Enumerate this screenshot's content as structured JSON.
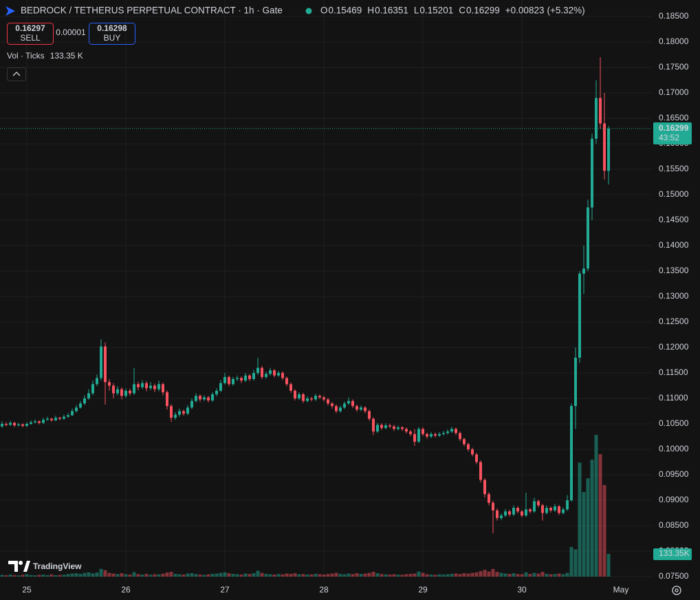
{
  "chart_data": {
    "type": "candlestick",
    "title": "BEDROCK / TETHERUS PERPETUAL CONTRACT · 1h · Gate",
    "legend": {
      "labels": [
        "O",
        "H",
        "L",
        "C"
      ],
      "values": [
        0.15469,
        0.16351,
        0.15201,
        0.16299
      ],
      "change": {
        "value": 0.00823,
        "label": "+0.00823"
      },
      "change_pct": {
        "value": 5.32,
        "label": "(+5.32%)"
      }
    },
    "trade": {
      "sell": {
        "price": 0.16297,
        "label": "SELL"
      },
      "spread": 1e-05,
      "buy": {
        "price": 0.16298,
        "label": "BUY"
      }
    },
    "volume_indicator": {
      "title": "Vol · Ticks",
      "value": {
        "value": 133.35,
        "label": "133.35 K"
      }
    },
    "categories": [
      null,
      null,
      null,
      null,
      null,
      null,
      "25",
      null,
      null,
      null,
      null,
      null,
      null,
      null,
      null,
      null,
      null,
      null,
      null,
      null,
      null,
      null,
      null,
      null,
      null,
      null,
      null,
      null,
      null,
      null,
      "26",
      null,
      null,
      null,
      null,
      null,
      null,
      null,
      null,
      null,
      null,
      null,
      null,
      null,
      null,
      null,
      null,
      null,
      null,
      null,
      null,
      null,
      null,
      null,
      "27",
      null,
      null,
      null,
      null,
      null,
      null,
      null,
      null,
      null,
      null,
      null,
      null,
      null,
      null,
      null,
      null,
      null,
      null,
      null,
      null,
      null,
      null,
      null,
      "28",
      null,
      null,
      null,
      null,
      null,
      null,
      null,
      null,
      null,
      null,
      null,
      null,
      null,
      null,
      null,
      null,
      null,
      null,
      null,
      null,
      null,
      null,
      null,
      "29",
      null,
      null,
      null,
      null,
      null,
      null,
      null,
      null,
      null,
      null,
      null,
      null,
      null,
      null,
      null,
      null,
      null,
      null,
      null,
      null,
      null,
      null,
      null,
      "30",
      null,
      null,
      null,
      null,
      null,
      null,
      null,
      null,
      null,
      null,
      null,
      null,
      null,
      null,
      null,
      null,
      null,
      null,
      null,
      null,
      null
    ],
    "x_end_label": "May",
    "candles": [
      [
        0.1045,
        0.1055,
        0.1042,
        0.105
      ],
      [
        0.105,
        0.1053,
        0.1045,
        0.1048
      ],
      [
        0.1048,
        0.1056,
        0.1046,
        0.1052
      ],
      [
        0.1052,
        0.1054,
        0.1044,
        0.1047
      ],
      [
        0.1047,
        0.1052,
        0.1045,
        0.1049
      ],
      [
        0.1049,
        0.1051,
        0.1043,
        0.1046
      ],
      [
        0.1046,
        0.1053,
        0.1044,
        0.105
      ],
      [
        0.105,
        0.1057,
        0.1048,
        0.1053
      ],
      [
        0.1053,
        0.1059,
        0.1051,
        0.1055
      ],
      [
        0.1055,
        0.1057,
        0.1049,
        0.1052
      ],
      [
        0.1052,
        0.1062,
        0.105,
        0.1058
      ],
      [
        0.1058,
        0.1064,
        0.1056,
        0.106
      ],
      [
        0.106,
        0.1062,
        0.1054,
        0.1057
      ],
      [
        0.1057,
        0.1066,
        0.1055,
        0.1062
      ],
      [
        0.1062,
        0.1064,
        0.1057,
        0.106
      ],
      [
        0.106,
        0.1068,
        0.1058,
        0.1064
      ],
      [
        0.1064,
        0.1071,
        0.1062,
        0.1067
      ],
      [
        0.1067,
        0.108,
        0.1065,
        0.1075
      ],
      [
        0.1075,
        0.1087,
        0.1072,
        0.1082
      ],
      [
        0.1082,
        0.1095,
        0.108,
        0.109
      ],
      [
        0.109,
        0.1106,
        0.1087,
        0.11
      ],
      [
        0.11,
        0.1118,
        0.1097,
        0.111
      ],
      [
        0.111,
        0.1135,
        0.1106,
        0.1128
      ],
      [
        0.1128,
        0.1147,
        0.1124,
        0.114
      ],
      [
        0.114,
        0.1216,
        0.1135,
        0.1202
      ],
      [
        0.1202,
        0.121,
        0.1088,
        0.1132
      ],
      [
        0.1132,
        0.1138,
        0.1115,
        0.1125
      ],
      [
        0.1125,
        0.113,
        0.11,
        0.111
      ],
      [
        0.111,
        0.1124,
        0.1106,
        0.1118
      ],
      [
        0.1118,
        0.1122,
        0.1098,
        0.1105
      ],
      [
        0.1105,
        0.112,
        0.1101,
        0.1115
      ],
      [
        0.1115,
        0.1119,
        0.1105,
        0.111
      ],
      [
        0.111,
        0.116,
        0.1107,
        0.1128
      ],
      [
        0.1128,
        0.1133,
        0.1116,
        0.1122
      ],
      [
        0.1122,
        0.1136,
        0.1118,
        0.113
      ],
      [
        0.113,
        0.1134,
        0.1114,
        0.112
      ],
      [
        0.112,
        0.1132,
        0.1116,
        0.1125
      ],
      [
        0.1125,
        0.1129,
        0.1112,
        0.1118
      ],
      [
        0.1118,
        0.1135,
        0.1114,
        0.1128
      ],
      [
        0.1128,
        0.1131,
        0.1106,
        0.1112
      ],
      [
        0.1112,
        0.1116,
        0.1078,
        0.1085
      ],
      [
        0.1085,
        0.1089,
        0.1054,
        0.1062
      ],
      [
        0.1062,
        0.1073,
        0.1058,
        0.1068
      ],
      [
        0.1068,
        0.108,
        0.1064,
        0.1075
      ],
      [
        0.1075,
        0.1078,
        0.1066,
        0.107
      ],
      [
        0.107,
        0.1087,
        0.1067,
        0.1082
      ],
      [
        0.1082,
        0.11,
        0.1079,
        0.1095
      ],
      [
        0.1095,
        0.111,
        0.1092,
        0.1105
      ],
      [
        0.1105,
        0.1108,
        0.1093,
        0.1098
      ],
      [
        0.1098,
        0.1106,
        0.1095,
        0.1102
      ],
      [
        0.1102,
        0.1105,
        0.1092,
        0.1096
      ],
      [
        0.1096,
        0.1112,
        0.1093,
        0.1108
      ],
      [
        0.1108,
        0.112,
        0.1104,
        0.1115
      ],
      [
        0.1115,
        0.1136,
        0.1112,
        0.113
      ],
      [
        0.113,
        0.115,
        0.1127,
        0.1142
      ],
      [
        0.1142,
        0.1145,
        0.1124,
        0.1128
      ],
      [
        0.1128,
        0.1142,
        0.1125,
        0.1138
      ],
      [
        0.1138,
        0.1145,
        0.1134,
        0.114
      ],
      [
        0.114,
        0.1143,
        0.113,
        0.1135
      ],
      [
        0.1135,
        0.115,
        0.1132,
        0.1145
      ],
      [
        0.1145,
        0.1148,
        0.1134,
        0.1138
      ],
      [
        0.1138,
        0.1156,
        0.1135,
        0.115
      ],
      [
        0.115,
        0.118,
        0.1146,
        0.116
      ],
      [
        0.116,
        0.1164,
        0.1138,
        0.1142
      ],
      [
        0.1142,
        0.1152,
        0.1139,
        0.1148
      ],
      [
        0.1148,
        0.116,
        0.1145,
        0.1155
      ],
      [
        0.1155,
        0.1158,
        0.1141,
        0.1145
      ],
      [
        0.1145,
        0.1154,
        0.1142,
        0.115
      ],
      [
        0.115,
        0.1153,
        0.1136,
        0.114
      ],
      [
        0.114,
        0.1143,
        0.1124,
        0.1128
      ],
      [
        0.1128,
        0.1131,
        0.1111,
        0.1115
      ],
      [
        0.1115,
        0.1118,
        0.1096,
        0.11
      ],
      [
        0.11,
        0.1112,
        0.1097,
        0.1108
      ],
      [
        0.1108,
        0.1111,
        0.1091,
        0.1095
      ],
      [
        0.1095,
        0.1104,
        0.1092,
        0.11
      ],
      [
        0.11,
        0.1103,
        0.1094,
        0.1098
      ],
      [
        0.1098,
        0.1109,
        0.1095,
        0.1105
      ],
      [
        0.1105,
        0.1108,
        0.1099,
        0.1102
      ],
      [
        0.1102,
        0.1105,
        0.1094,
        0.1098
      ],
      [
        0.1098,
        0.1101,
        0.1086,
        0.109
      ],
      [
        0.109,
        0.1093,
        0.108,
        0.1085
      ],
      [
        0.1085,
        0.1088,
        0.1071,
        0.1075
      ],
      [
        0.1075,
        0.1086,
        0.1072,
        0.1082
      ],
      [
        0.1082,
        0.1094,
        0.1079,
        0.109
      ],
      [
        0.109,
        0.1102,
        0.1087,
        0.1095
      ],
      [
        0.1095,
        0.1098,
        0.1081,
        0.1085
      ],
      [
        0.1085,
        0.1088,
        0.1074,
        0.1078
      ],
      [
        0.1078,
        0.1086,
        0.1075,
        0.1082
      ],
      [
        0.1082,
        0.1085,
        0.1071,
        0.1075
      ],
      [
        0.1075,
        0.1078,
        0.1056,
        0.106
      ],
      [
        0.106,
        0.1063,
        0.1028,
        0.1035
      ],
      [
        0.1035,
        0.1052,
        0.1032,
        0.1048
      ],
      [
        0.1048,
        0.1051,
        0.1038,
        0.1042
      ],
      [
        0.1042,
        0.1051,
        0.1039,
        0.1047
      ],
      [
        0.1047,
        0.105,
        0.1041,
        0.1045
      ],
      [
        0.1045,
        0.1048,
        0.1036,
        0.104
      ],
      [
        0.104,
        0.1047,
        0.1037,
        0.1043
      ],
      [
        0.1043,
        0.1046,
        0.1036,
        0.104
      ],
      [
        0.104,
        0.1043,
        0.1031,
        0.1035
      ],
      [
        0.1035,
        0.1038,
        0.1026,
        0.103
      ],
      [
        0.103,
        0.104,
        0.1007,
        0.1015
      ],
      [
        0.1015,
        0.1044,
        0.1012,
        0.104
      ],
      [
        0.104,
        0.1043,
        0.1026,
        0.103
      ],
      [
        0.103,
        0.1033,
        0.1021,
        0.1025
      ],
      [
        0.1025,
        0.1034,
        0.1022,
        0.103
      ],
      [
        0.103,
        0.1033,
        0.1023,
        0.1027
      ],
      [
        0.1027,
        0.1034,
        0.1024,
        0.103
      ],
      [
        0.103,
        0.1036,
        0.1027,
        0.1032
      ],
      [
        0.1032,
        0.1039,
        0.1029,
        0.1035
      ],
      [
        0.1035,
        0.1044,
        0.1032,
        0.104
      ],
      [
        0.104,
        0.1043,
        0.1028,
        0.1032
      ],
      [
        0.1032,
        0.1035,
        0.1016,
        0.102
      ],
      [
        0.102,
        0.1023,
        0.1006,
        0.101
      ],
      [
        0.101,
        0.1013,
        0.0996,
        0.1
      ],
      [
        0.1,
        0.1003,
        0.0986,
        0.099
      ],
      [
        0.099,
        0.0993,
        0.0971,
        0.0975
      ],
      [
        0.0975,
        0.0978,
        0.0935,
        0.094
      ],
      [
        0.094,
        0.0943,
        0.0905,
        0.0912
      ],
      [
        0.0912,
        0.0916,
        0.089,
        0.0895
      ],
      [
        0.0895,
        0.0899,
        0.0835,
        0.088
      ],
      [
        0.088,
        0.0884,
        0.086,
        0.0865
      ],
      [
        0.0865,
        0.0874,
        0.0861,
        0.087
      ],
      [
        0.087,
        0.0883,
        0.0867,
        0.0878
      ],
      [
        0.0878,
        0.0881,
        0.0868,
        0.0872
      ],
      [
        0.0872,
        0.089,
        0.0869,
        0.0885
      ],
      [
        0.0885,
        0.0888,
        0.0874,
        0.0878
      ],
      [
        0.0878,
        0.0881,
        0.0866,
        0.087
      ],
      [
        0.087,
        0.0915,
        0.0867,
        0.0882
      ],
      [
        0.0882,
        0.0885,
        0.0874,
        0.0878
      ],
      [
        0.0878,
        0.0905,
        0.0875,
        0.0898
      ],
      [
        0.0898,
        0.0901,
        0.0886,
        0.089
      ],
      [
        0.089,
        0.0893,
        0.086,
        0.0875
      ],
      [
        0.0875,
        0.089,
        0.0872,
        0.0885
      ],
      [
        0.0885,
        0.0888,
        0.0876,
        0.088
      ],
      [
        0.088,
        0.0893,
        0.0877,
        0.0888
      ],
      [
        0.0888,
        0.0891,
        0.0871,
        0.0875
      ],
      [
        0.0875,
        0.0886,
        0.0872,
        0.0882
      ],
      [
        0.0882,
        0.091,
        0.0879,
        0.09
      ],
      [
        0.09,
        0.109,
        0.0897,
        0.1085
      ],
      [
        0.1085,
        0.12,
        0.104,
        0.118
      ],
      [
        0.118,
        0.135,
        0.117,
        0.1345
      ],
      [
        0.1345,
        0.14,
        0.1305,
        0.1355
      ],
      [
        0.1355,
        0.149,
        0.135,
        0.1475
      ],
      [
        0.1475,
        0.162,
        0.145,
        0.161
      ],
      [
        0.161,
        0.1725,
        0.16,
        0.169
      ],
      [
        0.169,
        0.177,
        0.163,
        0.164
      ],
      [
        0.164,
        0.17,
        0.153,
        0.1547
      ],
      [
        0.15469,
        0.16351,
        0.15201,
        0.16299
      ]
    ],
    "volume": [
      10,
      8,
      12,
      9,
      7,
      11,
      14,
      9,
      8,
      10,
      12,
      9,
      13,
      8,
      10,
      11,
      15,
      18,
      20,
      16,
      22,
      25,
      19,
      24,
      45,
      38,
      22,
      18,
      15,
      20,
      14,
      12,
      26,
      15,
      12,
      16,
      11,
      14,
      13,
      17,
      24,
      28,
      16,
      14,
      12,
      18,
      20,
      15,
      12,
      10,
      13,
      16,
      18,
      22,
      25,
      20,
      16,
      14,
      12,
      18,
      15,
      20,
      35,
      22,
      16,
      14,
      12,
      15,
      13,
      18,
      16,
      20,
      14,
      15,
      12,
      13,
      16,
      14,
      12,
      15,
      18,
      22,
      16,
      14,
      18,
      15,
      20,
      16,
      18,
      22,
      28,
      20,
      15,
      13,
      12,
      14,
      12,
      11,
      14,
      16,
      18,
      30,
      22,
      14,
      12,
      11,
      13,
      12,
      14,
      16,
      18,
      15,
      20,
      18,
      22,
      25,
      32,
      40,
      30,
      45,
      28,
      22,
      18,
      16,
      20,
      15,
      14,
      25,
      16,
      22,
      18,
      28,
      16,
      14,
      15,
      18,
      14,
      22,
      174,
      160,
      670,
      497,
      578,
      687,
      833,
      720,
      538,
      133.35
    ],
    "up_color": "#22ab94",
    "down_color": "#f7525f",
    "ylim": [
      0.075,
      0.185
    ],
    "yticks": [
      {
        "value": 0.075,
        "label": "0.07500"
      },
      {
        "value": 0.08,
        "label": "0.08000"
      },
      {
        "value": 0.085,
        "label": "0.08500"
      },
      {
        "value": 0.09,
        "label": "0.09000"
      },
      {
        "value": 0.095,
        "label": "0.09500"
      },
      {
        "value": 0.1,
        "label": "0.10000"
      },
      {
        "value": 0.105,
        "label": "0.10500"
      },
      {
        "value": 0.11,
        "label": "0.11000"
      },
      {
        "value": 0.115,
        "label": "0.11500"
      },
      {
        "value": 0.12,
        "label": "0.12000"
      },
      {
        "value": 0.125,
        "label": "0.12500"
      },
      {
        "value": 0.13,
        "label": "0.13000"
      },
      {
        "value": 0.135,
        "label": "0.13500"
      },
      {
        "value": 0.14,
        "label": "0.14000"
      },
      {
        "value": 0.145,
        "label": "0.14500"
      },
      {
        "value": 0.15,
        "label": "0.15000"
      },
      {
        "value": 0.155,
        "label": "0.15500"
      },
      {
        "value": 0.16,
        "label": "0.16000"
      },
      {
        "value": 0.165,
        "label": "0.16500"
      },
      {
        "value": 0.17,
        "label": "0.17000"
      },
      {
        "value": 0.175,
        "label": "0.17500"
      },
      {
        "value": 0.18,
        "label": "0.18000"
      },
      {
        "value": 0.185,
        "label": "0.18500"
      }
    ],
    "grid": true,
    "last_price": 0.16299,
    "countdown": "43:52",
    "volume_tag": {
      "value": 133.35,
      "label": "133.35K"
    },
    "watermark": "TradingView"
  }
}
